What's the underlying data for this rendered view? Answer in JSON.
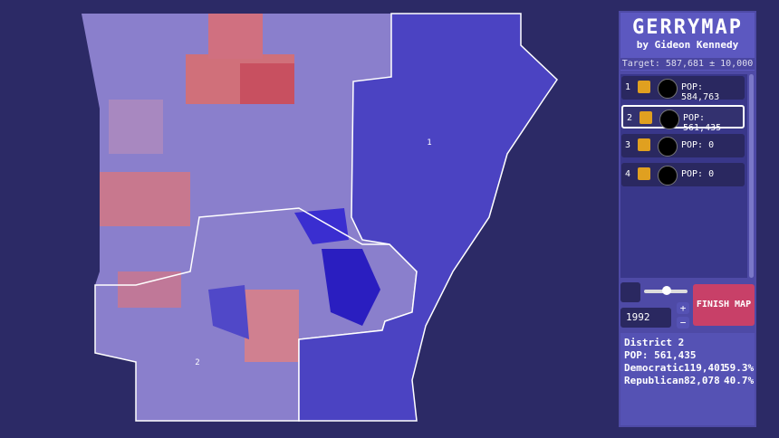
{
  "header": {
    "title": "GERRYMAP",
    "subtitle": "by Gideon Kennedy",
    "target": "Target: 587,681 ± 10,000"
  },
  "districts": [
    {
      "number": "1",
      "population": "POP: 584,763"
    },
    {
      "number": "2",
      "population": "POP: 561,435"
    },
    {
      "number": "3",
      "population": "POP: 0"
    },
    {
      "number": "4",
      "population": "POP: 0"
    }
  ],
  "map": {
    "labels": [
      "1",
      "2"
    ]
  },
  "controls": {
    "year": "1992",
    "finish": "FINISH MAP"
  },
  "info": {
    "title": "District 2",
    "population": "POP: 561,435",
    "rows": [
      [
        "Democratic",
        "119,401",
        "59.3%"
      ],
      [
        "Republican",
        "82,078",
        "40.7%"
      ]
    ]
  }
}
